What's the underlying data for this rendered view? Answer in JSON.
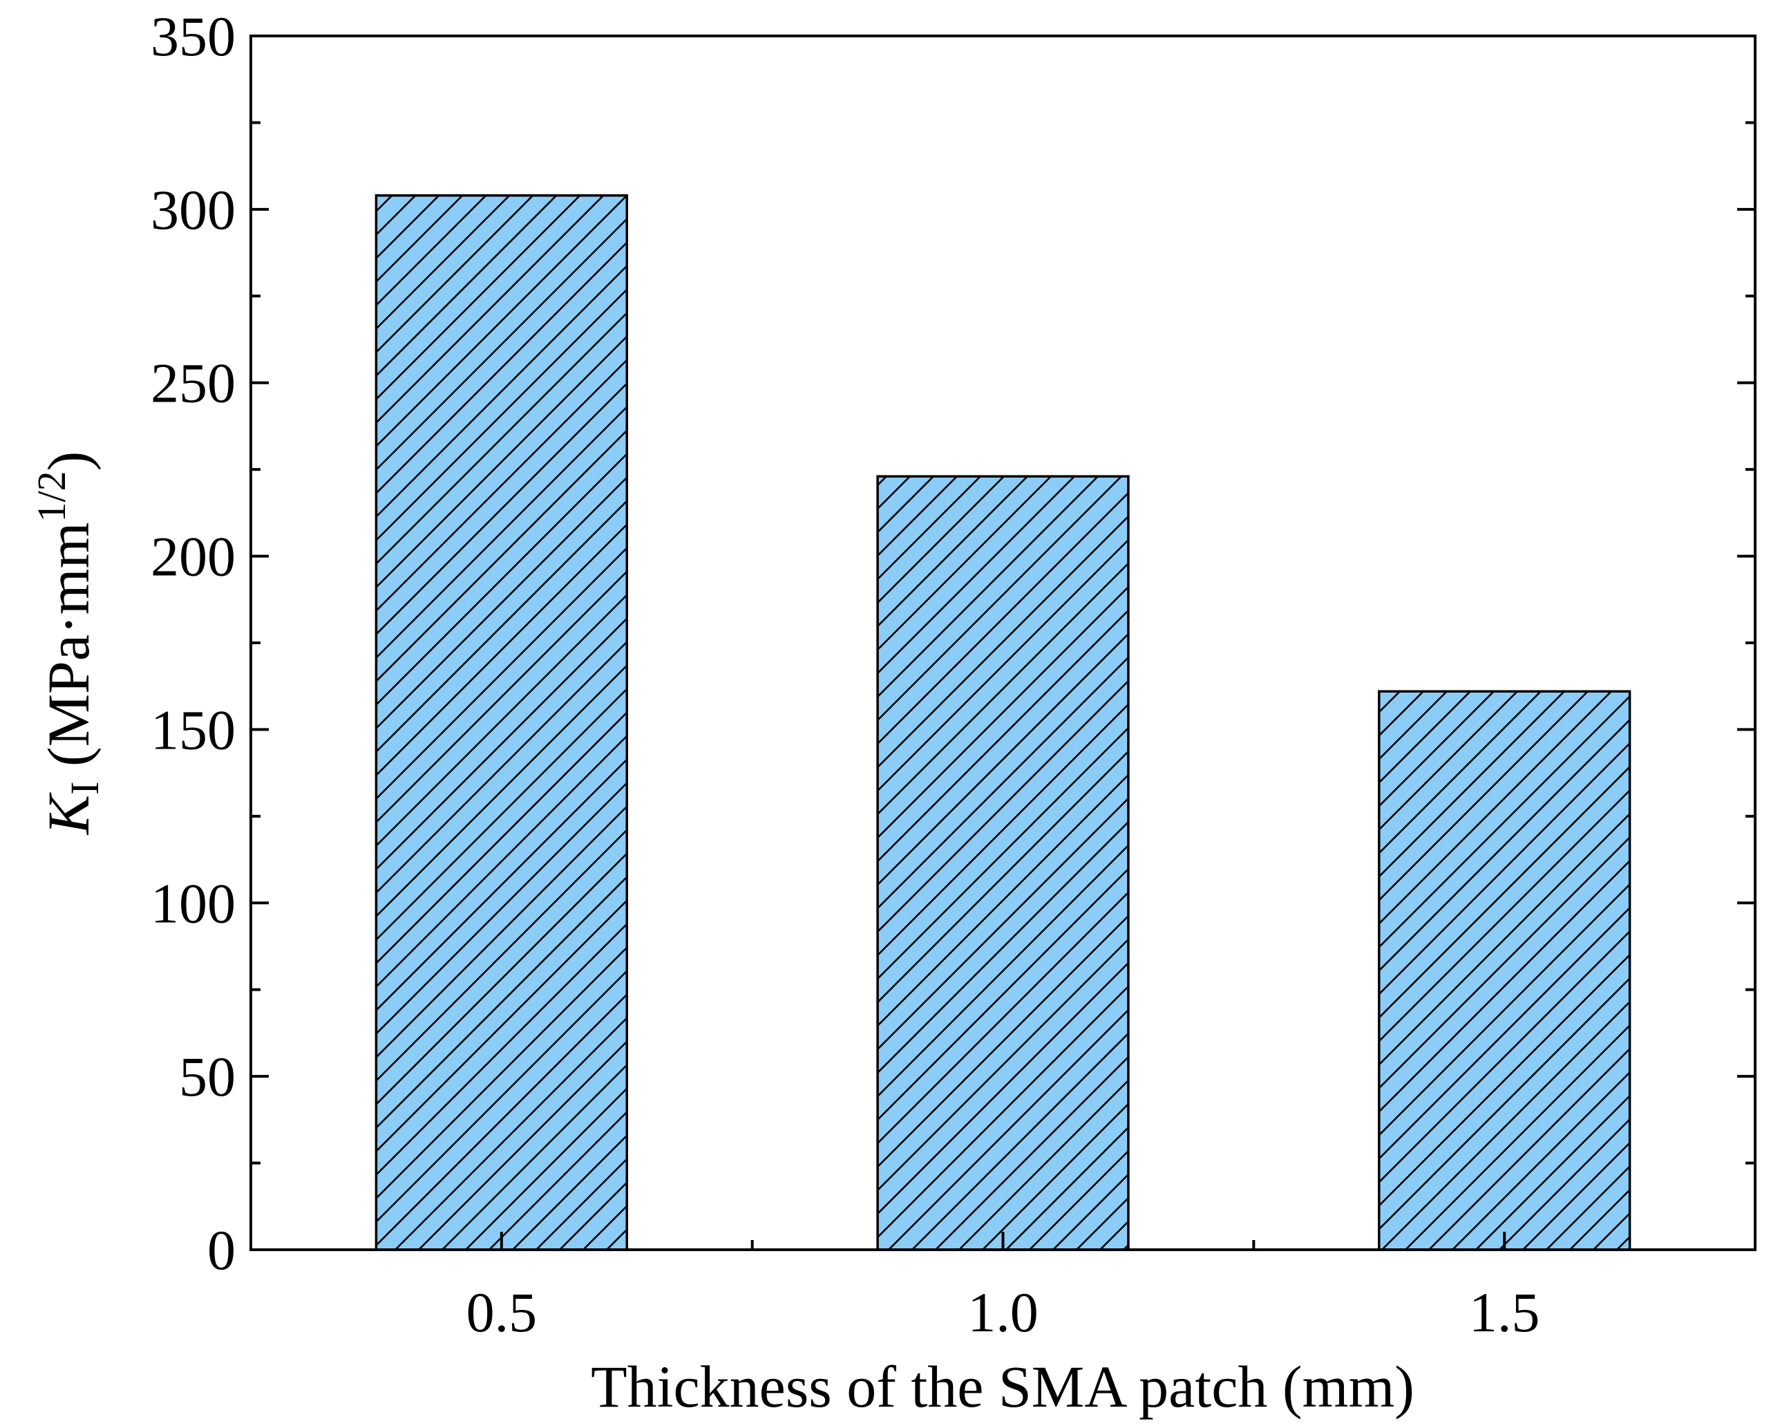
{
  "chart_data": {
    "type": "bar",
    "categories": [
      "0.5",
      "1.0",
      "1.5"
    ],
    "values": [
      304,
      223,
      161
    ],
    "title": "",
    "xlabel": "Thickness of the SMA patch (mm)",
    "ylabel": {
      "symbol": "K",
      "subscript": "I",
      "unit_open": " (MPa·mm",
      "unit_sup": "1/2",
      "unit_close": ")"
    },
    "ylim": [
      0,
      350
    ],
    "yticks": [
      "0",
      "50",
      "100",
      "150",
      "200",
      "250",
      "300",
      "350"
    ],
    "grid": false,
    "legend": "none",
    "bar_fill": "#8ccdf8",
    "bar_hatch": "diagonal",
    "bar_edge": "#000000"
  }
}
